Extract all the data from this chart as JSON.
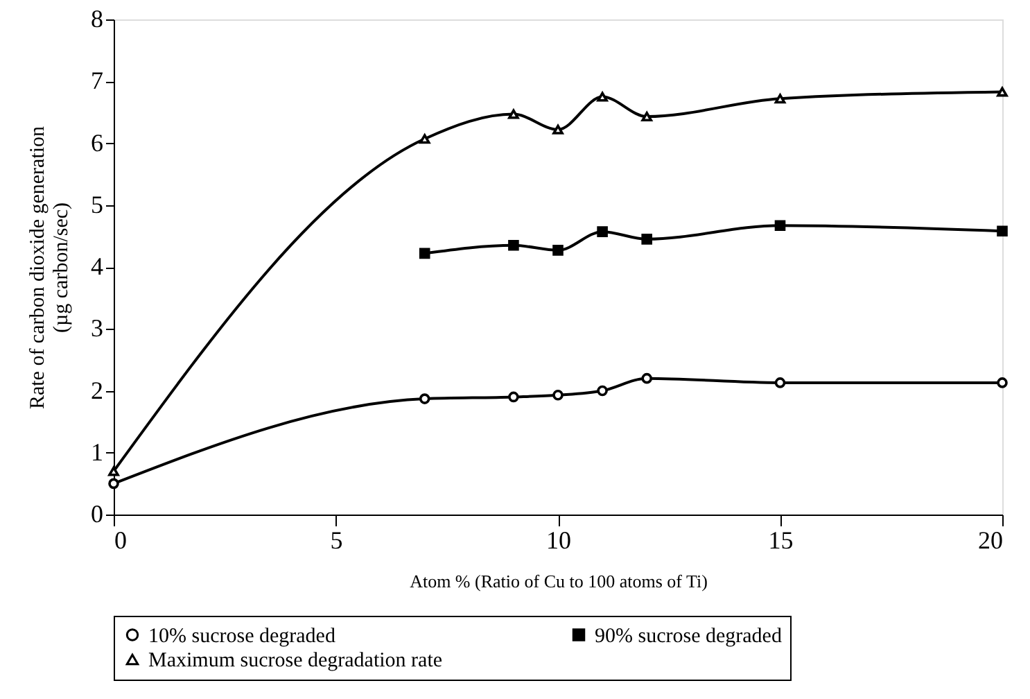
{
  "chart_data": {
    "type": "line",
    "xlabel": "Atom % (Ratio of Cu to 100 atoms of Ti)",
    "ylabel": "Rate of carbon dioxide generation\n(µg carbon/sec)",
    "series": [
      {
        "name": "10% sucrose degraded",
        "color": "#000000",
        "marker": "circle",
        "x": [
          0,
          7,
          9,
          10,
          11,
          12,
          15,
          20
        ],
        "values": [
          0.5,
          1.87,
          1.9,
          1.93,
          2.0,
          2.2,
          2.13,
          2.13
        ]
      },
      {
        "name": "90% sucrose degraded",
        "color": "#000000",
        "marker": "square",
        "x": [
          7,
          9,
          10,
          11,
          12,
          15,
          20
        ],
        "values": [
          4.22,
          4.35,
          4.27,
          4.57,
          4.45,
          4.67,
          4.58
        ]
      },
      {
        "name": "Maximum sucrose degradation rate",
        "color": "#000000",
        "marker": "triangle",
        "x": [
          0,
          7,
          9,
          10,
          11,
          12,
          15,
          20
        ],
        "values": [
          0.7,
          6.07,
          6.47,
          6.22,
          6.75,
          6.43,
          6.72,
          6.83
        ]
      }
    ],
    "xlim": [
      0,
      20
    ],
    "xticks": [
      0,
      5,
      10,
      15,
      20
    ],
    "ylim": [
      0,
      8
    ],
    "yticks": [
      0,
      1,
      2,
      3,
      4,
      5,
      6,
      7,
      8
    ],
    "grid": false,
    "legend": "bottom",
    "line_style": "solid"
  }
}
